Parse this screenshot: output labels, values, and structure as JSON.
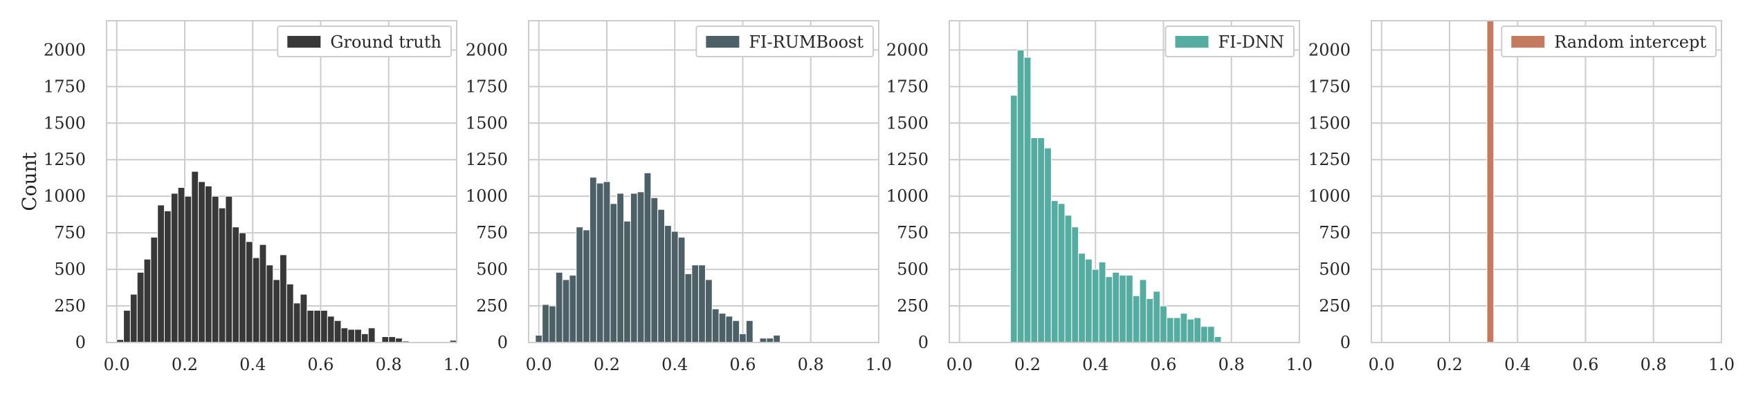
{
  "chart_data": [
    {
      "type": "bar",
      "subtype": "histogram",
      "series_name": "Ground truth",
      "ylabel": "Count",
      "xlim": [
        -0.03,
        1.0
      ],
      "ylim": [
        0,
        2200
      ],
      "xticks": [
        "0.0",
        "0.2",
        "0.4",
        "0.6",
        "0.8",
        "1.0"
      ],
      "yticks": [
        "0",
        "250",
        "500",
        "750",
        "1000",
        "1250",
        "1500",
        "1750",
        "2000"
      ],
      "grid": true,
      "legend": "top-right",
      "color": "#383838",
      "bin_width": 0.02,
      "bins": [
        {
          "x": 0.0,
          "count": 20
        },
        {
          "x": 0.02,
          "count": 220
        },
        {
          "x": 0.04,
          "count": 330
        },
        {
          "x": 0.06,
          "count": 480
        },
        {
          "x": 0.08,
          "count": 570
        },
        {
          "x": 0.1,
          "count": 720
        },
        {
          "x": 0.12,
          "count": 940
        },
        {
          "x": 0.14,
          "count": 900
        },
        {
          "x": 0.16,
          "count": 1020
        },
        {
          "x": 0.18,
          "count": 1060
        },
        {
          "x": 0.2,
          "count": 1000
        },
        {
          "x": 0.22,
          "count": 1170
        },
        {
          "x": 0.24,
          "count": 1100
        },
        {
          "x": 0.26,
          "count": 1070
        },
        {
          "x": 0.28,
          "count": 1000
        },
        {
          "x": 0.3,
          "count": 920
        },
        {
          "x": 0.32,
          "count": 1000
        },
        {
          "x": 0.34,
          "count": 790
        },
        {
          "x": 0.36,
          "count": 750
        },
        {
          "x": 0.38,
          "count": 690
        },
        {
          "x": 0.4,
          "count": 580
        },
        {
          "x": 0.42,
          "count": 670
        },
        {
          "x": 0.44,
          "count": 530
        },
        {
          "x": 0.46,
          "count": 430
        },
        {
          "x": 0.48,
          "count": 600
        },
        {
          "x": 0.5,
          "count": 400
        },
        {
          "x": 0.52,
          "count": 270
        },
        {
          "x": 0.54,
          "count": 330
        },
        {
          "x": 0.56,
          "count": 220
        },
        {
          "x": 0.58,
          "count": 220
        },
        {
          "x": 0.6,
          "count": 220
        },
        {
          "x": 0.62,
          "count": 180
        },
        {
          "x": 0.64,
          "count": 150
        },
        {
          "x": 0.66,
          "count": 100
        },
        {
          "x": 0.68,
          "count": 90
        },
        {
          "x": 0.7,
          "count": 90
        },
        {
          "x": 0.72,
          "count": 60
        },
        {
          "x": 0.74,
          "count": 100
        },
        {
          "x": 0.76,
          "count": 0
        },
        {
          "x": 0.78,
          "count": 40
        },
        {
          "x": 0.8,
          "count": 40
        },
        {
          "x": 0.82,
          "count": 30
        },
        {
          "x": 0.84,
          "count": 10
        },
        {
          "x": 0.98,
          "count": 15
        }
      ]
    },
    {
      "type": "bar",
      "subtype": "histogram",
      "series_name": "FI-RUMBoost",
      "ylabel": "",
      "xlim": [
        -0.03,
        1.0
      ],
      "ylim": [
        0,
        2200
      ],
      "xticks": [
        "0.0",
        "0.2",
        "0.4",
        "0.6",
        "0.8",
        "1.0"
      ],
      "yticks": [
        "0",
        "250",
        "500",
        "750",
        "1000",
        "1250",
        "1500",
        "1750",
        "2000"
      ],
      "grid": true,
      "legend": "top-right",
      "color": "#4d6068",
      "bin_width": 0.02,
      "bins": [
        {
          "x": -0.01,
          "count": 50
        },
        {
          "x": 0.01,
          "count": 260
        },
        {
          "x": 0.03,
          "count": 250
        },
        {
          "x": 0.05,
          "count": 480
        },
        {
          "x": 0.07,
          "count": 430
        },
        {
          "x": 0.09,
          "count": 460
        },
        {
          "x": 0.11,
          "count": 790
        },
        {
          "x": 0.13,
          "count": 770
        },
        {
          "x": 0.15,
          "count": 1130
        },
        {
          "x": 0.17,
          "count": 1090
        },
        {
          "x": 0.19,
          "count": 1100
        },
        {
          "x": 0.21,
          "count": 950
        },
        {
          "x": 0.23,
          "count": 1020
        },
        {
          "x": 0.25,
          "count": 830
        },
        {
          "x": 0.27,
          "count": 1020
        },
        {
          "x": 0.29,
          "count": 1030
        },
        {
          "x": 0.31,
          "count": 1160
        },
        {
          "x": 0.33,
          "count": 990
        },
        {
          "x": 0.35,
          "count": 910
        },
        {
          "x": 0.37,
          "count": 800
        },
        {
          "x": 0.39,
          "count": 760
        },
        {
          "x": 0.41,
          "count": 720
        },
        {
          "x": 0.43,
          "count": 470
        },
        {
          "x": 0.45,
          "count": 530
        },
        {
          "x": 0.47,
          "count": 530
        },
        {
          "x": 0.49,
          "count": 430
        },
        {
          "x": 0.51,
          "count": 230
        },
        {
          "x": 0.53,
          "count": 200
        },
        {
          "x": 0.55,
          "count": 180
        },
        {
          "x": 0.57,
          "count": 150
        },
        {
          "x": 0.59,
          "count": 60
        },
        {
          "x": 0.61,
          "count": 150
        },
        {
          "x": 0.63,
          "count": 0
        },
        {
          "x": 0.65,
          "count": 30
        },
        {
          "x": 0.67,
          "count": 30
        },
        {
          "x": 0.69,
          "count": 50
        }
      ]
    },
    {
      "type": "bar",
      "subtype": "histogram",
      "series_name": "FI-DNN",
      "ylabel": "",
      "xlim": [
        -0.03,
        1.0
      ],
      "ylim": [
        0,
        2200
      ],
      "xticks": [
        "0.0",
        "0.2",
        "0.4",
        "0.6",
        "0.8",
        "1.0"
      ],
      "yticks": [
        "0",
        "250",
        "500",
        "750",
        "1000",
        "1250",
        "1500",
        "1750",
        "2000"
      ],
      "grid": true,
      "legend": "top-right",
      "color": "#55ada2",
      "bin_width": 0.02,
      "bins": [
        {
          "x": 0.15,
          "count": 1690
        },
        {
          "x": 0.17,
          "count": 2000
        },
        {
          "x": 0.19,
          "count": 1950
        },
        {
          "x": 0.21,
          "count": 1400
        },
        {
          "x": 0.23,
          "count": 1400
        },
        {
          "x": 0.25,
          "count": 1330
        },
        {
          "x": 0.27,
          "count": 970
        },
        {
          "x": 0.29,
          "count": 950
        },
        {
          "x": 0.31,
          "count": 870
        },
        {
          "x": 0.33,
          "count": 790
        },
        {
          "x": 0.35,
          "count": 610
        },
        {
          "x": 0.37,
          "count": 570
        },
        {
          "x": 0.39,
          "count": 500
        },
        {
          "x": 0.41,
          "count": 550
        },
        {
          "x": 0.43,
          "count": 450
        },
        {
          "x": 0.45,
          "count": 480
        },
        {
          "x": 0.47,
          "count": 460
        },
        {
          "x": 0.49,
          "count": 460
        },
        {
          "x": 0.51,
          "count": 320
        },
        {
          "x": 0.53,
          "count": 430
        },
        {
          "x": 0.55,
          "count": 300
        },
        {
          "x": 0.57,
          "count": 350
        },
        {
          "x": 0.59,
          "count": 250
        },
        {
          "x": 0.61,
          "count": 170
        },
        {
          "x": 0.63,
          "count": 170
        },
        {
          "x": 0.65,
          "count": 200
        },
        {
          "x": 0.67,
          "count": 160
        },
        {
          "x": 0.69,
          "count": 170
        },
        {
          "x": 0.71,
          "count": 110
        },
        {
          "x": 0.73,
          "count": 110
        },
        {
          "x": 0.75,
          "count": 40
        }
      ]
    },
    {
      "type": "bar",
      "subtype": "histogram",
      "series_name": "Random intercept",
      "ylabel": "",
      "xlim": [
        -0.03,
        1.0
      ],
      "ylim": [
        0,
        2200
      ],
      "xticks": [
        "0.0",
        "0.2",
        "0.4",
        "0.6",
        "0.8",
        "1.0"
      ],
      "yticks": [
        "0",
        "250",
        "500",
        "750",
        "1000",
        "1250",
        "1500",
        "1750",
        "2000"
      ],
      "grid": true,
      "legend": "top-right",
      "color": "#c47a5e",
      "bin_width": 0.02,
      "bins": [
        {
          "x": 0.31,
          "count": 2200
        }
      ]
    }
  ]
}
